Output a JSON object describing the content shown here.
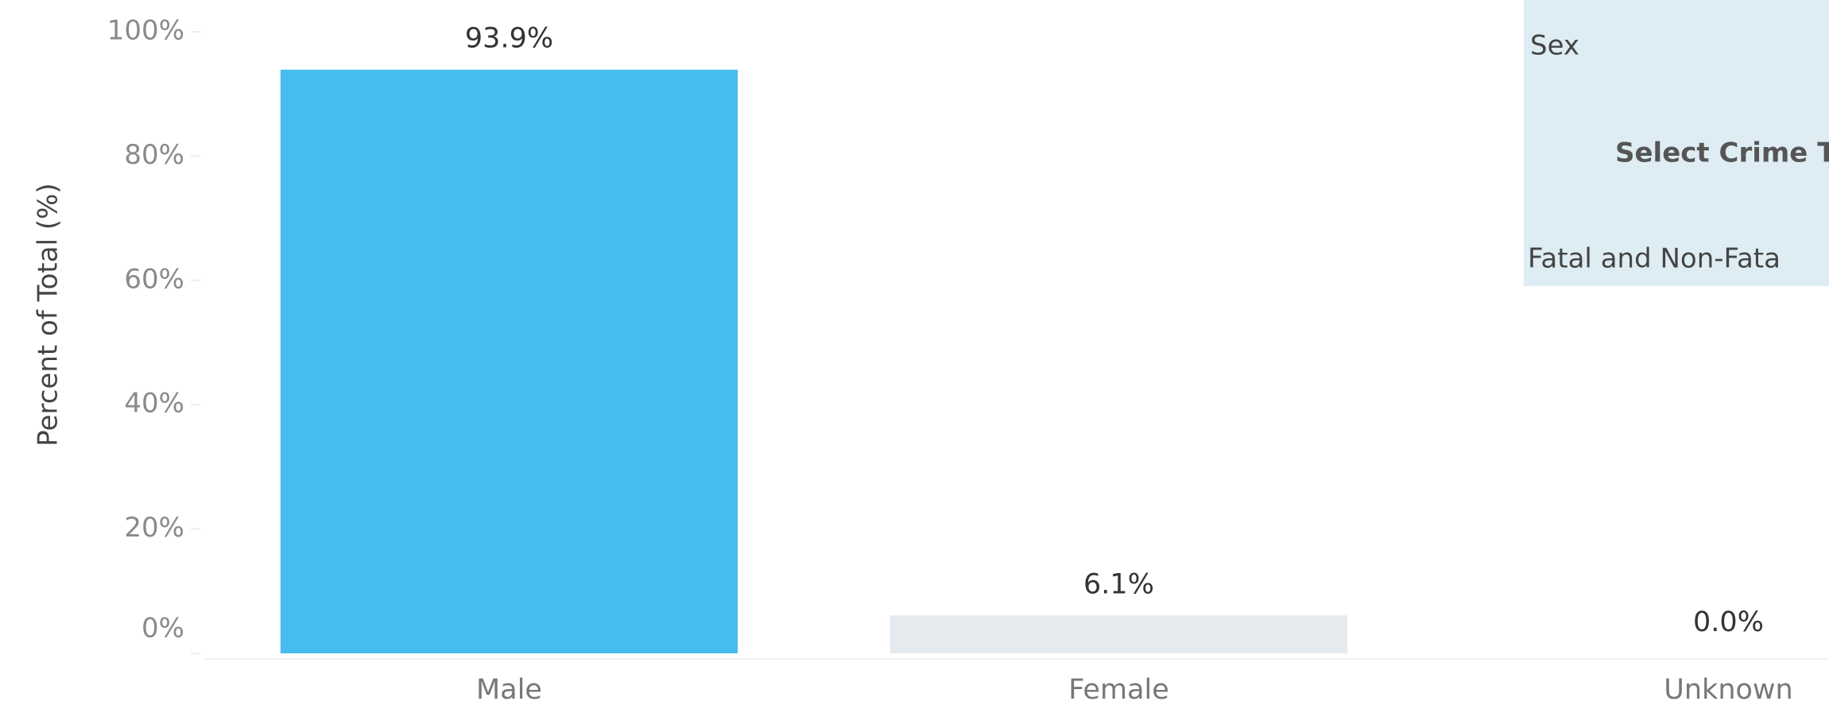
{
  "chart_data": {
    "type": "bar",
    "y_label": "Percent of Total (%)",
    "categories": [
      "Male",
      "Female",
      "Unknown"
    ],
    "values": [
      93.9,
      6.1,
      0.0
    ],
    "value_labels": [
      "93.9%",
      "6.1%",
      "0.0%"
    ],
    "colors": [
      "#47bcee",
      "#e5eaee",
      "#e5eaee"
    ],
    "ylim": [
      0,
      100
    ],
    "yticks": [
      {
        "value": 0,
        "label": "0%"
      },
      {
        "value": 20,
        "label": "20%"
      },
      {
        "value": 40,
        "label": "40%"
      },
      {
        "value": 60,
        "label": "60%"
      },
      {
        "value": 80,
        "label": "80%"
      },
      {
        "value": 100,
        "label": "100%"
      }
    ],
    "grid": false
  },
  "legend_panel": {
    "title": "Sex",
    "heading": "Select Crime T",
    "selection": "Fatal and Non-Fata"
  }
}
